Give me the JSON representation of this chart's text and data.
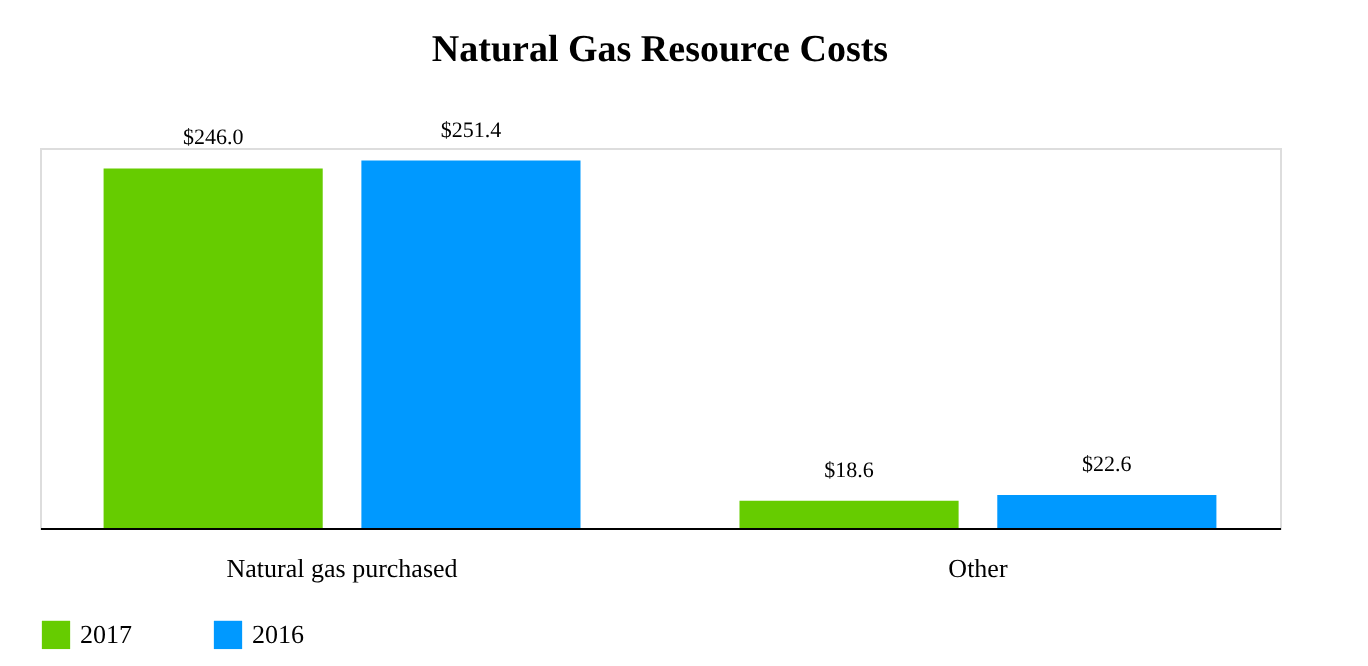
{
  "chart_data": {
    "type": "bar",
    "title": "Natural Gas Resource Costs",
    "categories": [
      "Natural gas purchased",
      "Other"
    ],
    "series": [
      {
        "name": "2017",
        "color": "#66cc00",
        "values": [
          246.0,
          18.6
        ],
        "value_labels": [
          "$246.0",
          "$18.6"
        ]
      },
      {
        "name": "2016",
        "color": "#0099ff",
        "values": [
          251.4,
          22.6
        ],
        "value_labels": [
          "$251.4",
          "$22.6"
        ]
      }
    ],
    "legend": "bottom",
    "grid": false
  }
}
